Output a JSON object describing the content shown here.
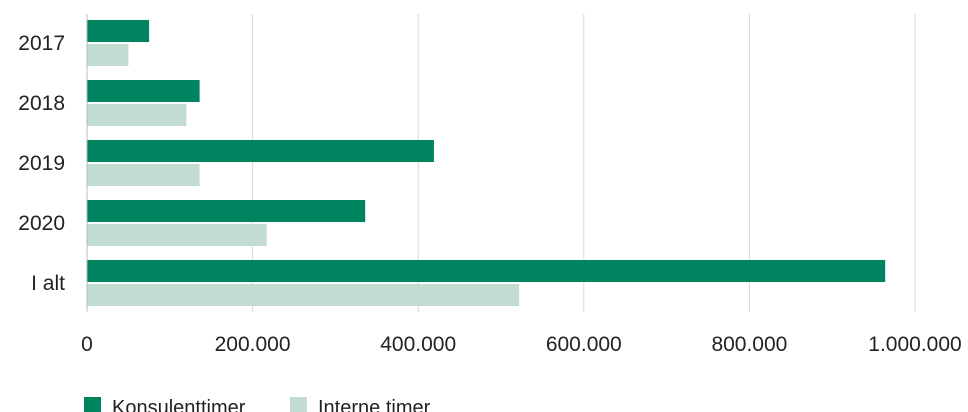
{
  "chart_data": {
    "type": "bar",
    "orientation": "horizontal",
    "categories": [
      "2017",
      "2018",
      "2019",
      "2020",
      "I alt"
    ],
    "series": [
      {
        "name": "Konsulenttimer",
        "color": "#00845f",
        "values": [
          75000,
          136000,
          419000,
          336000,
          964000
        ]
      },
      {
        "name": "Interne timer",
        "color": "#c2dcd2",
        "values": [
          50000,
          120000,
          136000,
          217000,
          522000
        ]
      }
    ],
    "xlim": [
      0,
      1000000
    ],
    "xticks": [
      0,
      200000,
      400000,
      600000,
      800000,
      1000000
    ],
    "xtick_labels": [
      "0",
      "200.000",
      "400.000",
      "600.000",
      "800.000",
      "1.000.000"
    ],
    "grid": "vertical",
    "legend_position": "bottom-left",
    "title": "",
    "xlabel": "",
    "ylabel": ""
  }
}
